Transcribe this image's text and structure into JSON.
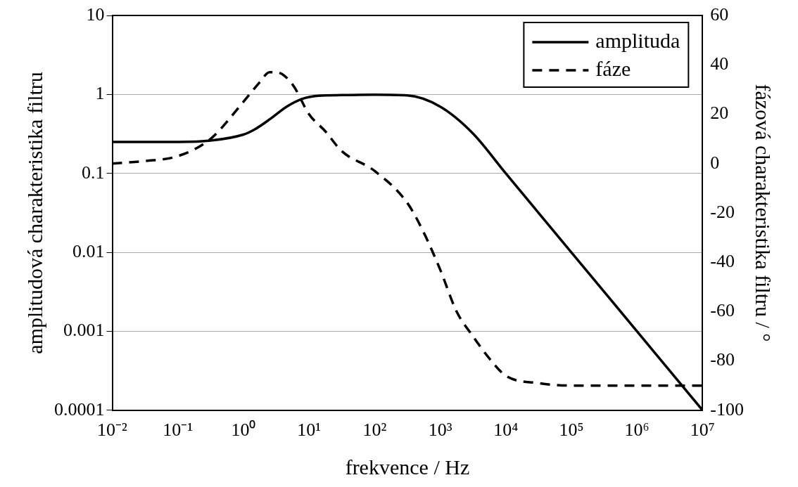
{
  "chart_data": {
    "type": "line",
    "xlabel": "frekvence / Hz",
    "ylabel": "amplitudová charakteristika filtru",
    "y2label": "fázová charakteristika filtru / °",
    "log": "xy",
    "grid": "y",
    "legend": "top right",
    "marker": "none",
    "xlim": [
      0.01,
      10000000
    ],
    "xticks": [
      {
        "value": 0.01,
        "label": "10⁻²"
      },
      {
        "value": 0.1,
        "label": "10⁻¹"
      },
      {
        "value": 1,
        "label": "10⁰"
      },
      {
        "value": 10,
        "label": "10¹"
      },
      {
        "value": 100,
        "label": "10²"
      },
      {
        "value": 1000,
        "label": "10³"
      },
      {
        "value": 10000,
        "label": "10⁴"
      },
      {
        "value": 100000,
        "label": "10⁵"
      },
      {
        "value": 1000000,
        "label": "10⁶"
      },
      {
        "value": 10000000,
        "label": "10⁷"
      }
    ],
    "ylim": [
      0.0001,
      10
    ],
    "yticks": [
      0.0001,
      0.001,
      0.01,
      0.1,
      1,
      10
    ],
    "y2lim": [
      -100,
      60
    ],
    "y2ticks": [
      -100,
      -80,
      -60,
      -40,
      -20,
      0,
      20,
      40,
      60
    ],
    "series": [
      {
        "name": "amplituda",
        "color": "#000000",
        "line_style": "solid",
        "x": [
          0.01,
          0.1,
          0.316,
          1,
          1.48,
          2.57,
          4.57,
          7.94,
          13.8,
          31.6,
          100,
          316,
          1000,
          3160,
          10000,
          100000,
          1000000,
          10000000
        ],
        "values": [
          0.25,
          0.25,
          0.26,
          0.31,
          0.36,
          0.49,
          0.7,
          0.88,
          0.96,
          0.98,
          0.99,
          0.97,
          0.7,
          0.32,
          0.1,
          0.01,
          0.001,
          0.0001
        ]
      },
      {
        "name": "fáze",
        "color": "#000000",
        "line_style": "dashed",
        "axis": "y2",
        "x": [
          0.01,
          0.0316,
          0.1,
          0.316,
          1,
          1.78,
          2.51,
          3.16,
          5.62,
          10,
          17.8,
          31.6,
          100,
          316,
          562,
          1000,
          1780,
          3160,
          5620,
          10000,
          31600,
          100000,
          10000000
        ],
        "values": [
          0,
          1,
          3,
          10,
          25,
          33,
          37,
          37,
          32,
          20,
          13,
          5,
          -3,
          -16,
          -28,
          -43,
          -60,
          -70,
          -79,
          -86,
          -89,
          -90,
          -90
        ]
      }
    ]
  }
}
